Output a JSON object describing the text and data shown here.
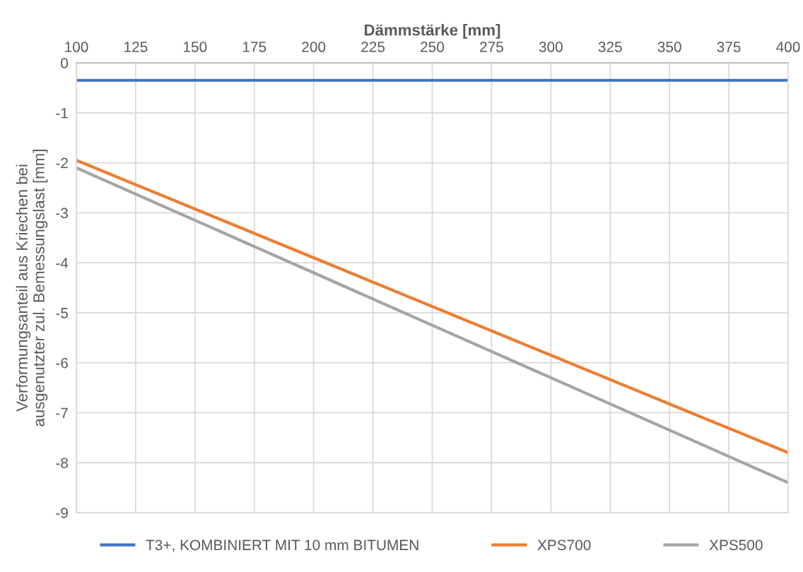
{
  "chart_data": {
    "type": "line",
    "xlabel": "Dämmstärke [mm]",
    "ylabel": "Verformungsanteil aus Kriechen bei\nausgenutzter zul. Bemessungslast [mm]",
    "x": [
      100,
      200,
      300,
      400
    ],
    "series": [
      {
        "name": "T3+, KOMBINIERT MIT 10 mm BITUMEN",
        "color": "#4472c4",
        "values": [
          -0.35,
          -0.35,
          -0.35,
          -0.35
        ]
      },
      {
        "name": "XPS700",
        "color": "#ed7d31",
        "values": [
          -1.95,
          -3.9,
          -5.85,
          -7.8
        ]
      },
      {
        "name": "XPS500",
        "color": "#a5a5a5",
        "values": [
          -2.1,
          -4.2,
          -6.3,
          -8.4
        ]
      }
    ],
    "xlim": [
      100,
      400
    ],
    "xticks": [
      100,
      125,
      150,
      175,
      200,
      225,
      250,
      275,
      300,
      325,
      350,
      375,
      400
    ],
    "ylim": [
      -9,
      0
    ],
    "yticks": [
      -9,
      -8,
      -7,
      -6,
      -5,
      -4,
      -3,
      -2,
      -1,
      0
    ],
    "grid": true,
    "legend": "bottom",
    "marker": "none",
    "line_style": "solid"
  }
}
